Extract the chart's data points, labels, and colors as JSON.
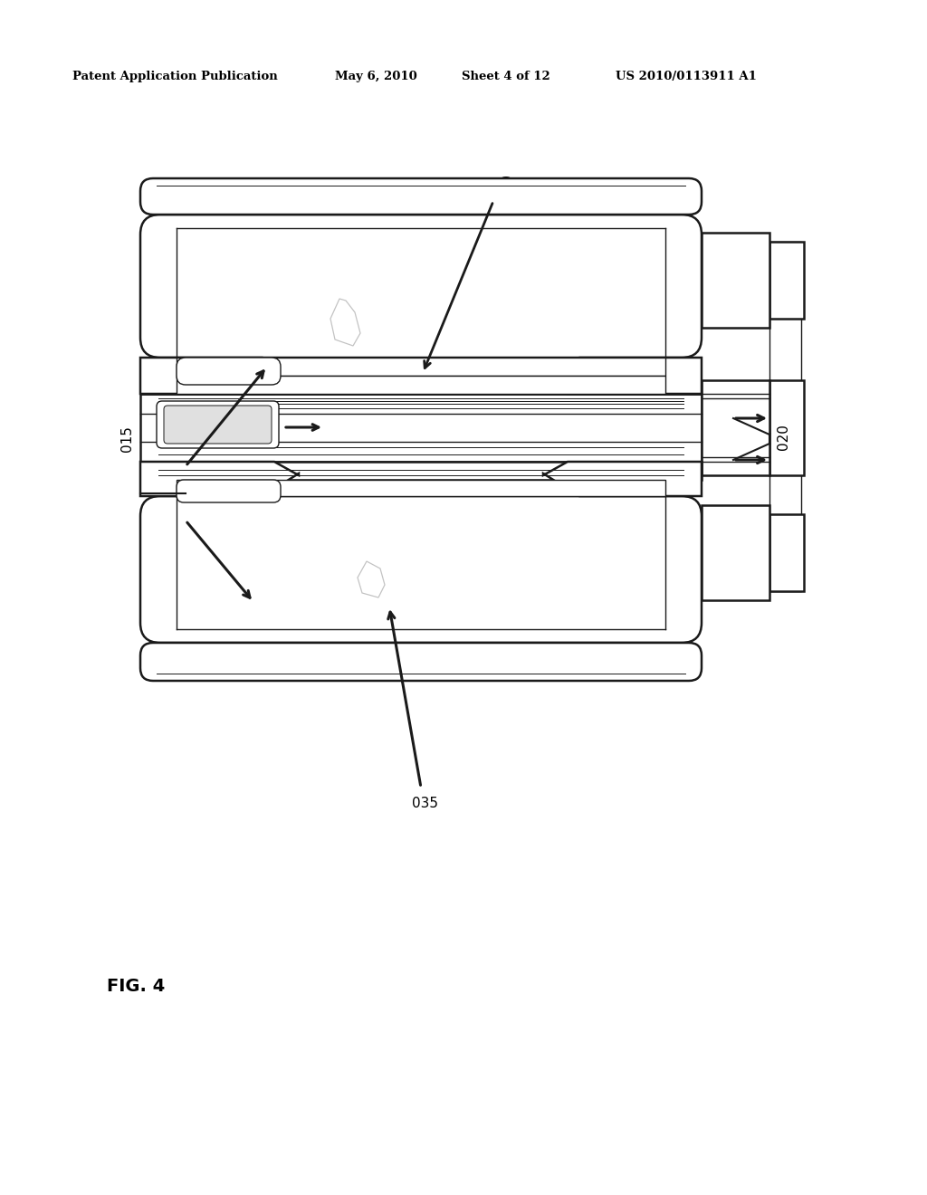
{
  "bg_color": "#ffffff",
  "lc": "#1a1a1a",
  "lc_gray": "#888888",
  "header_text": "Patent Application Publication",
  "header_date": "May 6, 2010",
  "header_sheet": "Sheet 4 of 12",
  "header_patent": "US 2010/0113911 A1",
  "fig_label": "FIG. 4",
  "gray_body": "#c8c8c8",
  "gray_light": "#e0e0e0",
  "gray_med": "#aaaaaa"
}
